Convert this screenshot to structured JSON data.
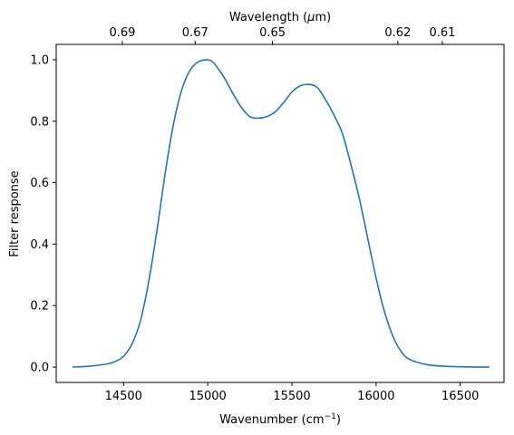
{
  "chart_data": {
    "type": "line",
    "xlabel_main": "Wavenumber (cm",
    "xlabel_sup": "−1",
    "xlabel_close": ")",
    "ylabel": "Filter response",
    "top_xlabel_main": "Wavelength (",
    "top_xlabel_mu": "μ",
    "top_xlabel_close": "m)",
    "xlim": [
      14100,
      16760
    ],
    "ylim": [
      -0.05,
      1.05
    ],
    "x_ticks": [
      14500,
      15000,
      15500,
      16000,
      16500
    ],
    "x_tick_labels": [
      "14500",
      "15000",
      "15500",
      "16000",
      "16500"
    ],
    "y_ticks": [
      0.0,
      0.2,
      0.4,
      0.6,
      0.8,
      1.0
    ],
    "y_tick_labels": [
      "0.0",
      "0.2",
      "0.4",
      "0.6",
      "0.8",
      "1.0"
    ],
    "top_ticks_wavelength_um": [
      0.69,
      0.67,
      0.65,
      0.62,
      0.61
    ],
    "top_tick_labels": [
      "0.69",
      "0.67",
      "0.65",
      "0.62",
      "0.61"
    ],
    "grid": false,
    "line_color": "#1f77b4",
    "series": [
      {
        "x": [
          14200,
          14300,
          14400,
          14450,
          14500,
          14550,
          14600,
          14650,
          14700,
          14750,
          14800,
          14850,
          14900,
          14950,
          15000,
          15025,
          15050,
          15100,
          15150,
          15200,
          15250,
          15300,
          15350,
          15400,
          15450,
          15500,
          15550,
          15600,
          15650,
          15700,
          15750,
          15800,
          15850,
          15900,
          15950,
          16000,
          16050,
          16100,
          16150,
          16200,
          16300,
          16400,
          16500,
          16670
        ],
        "y": [
          0.0,
          0.003,
          0.01,
          0.018,
          0.035,
          0.075,
          0.15,
          0.28,
          0.45,
          0.64,
          0.8,
          0.91,
          0.97,
          0.995,
          1.0,
          0.995,
          0.98,
          0.94,
          0.89,
          0.845,
          0.815,
          0.81,
          0.815,
          0.83,
          0.86,
          0.895,
          0.915,
          0.92,
          0.91,
          0.87,
          0.82,
          0.76,
          0.66,
          0.55,
          0.42,
          0.29,
          0.18,
          0.1,
          0.05,
          0.025,
          0.008,
          0.003,
          0.001,
          0.0
        ]
      }
    ]
  }
}
